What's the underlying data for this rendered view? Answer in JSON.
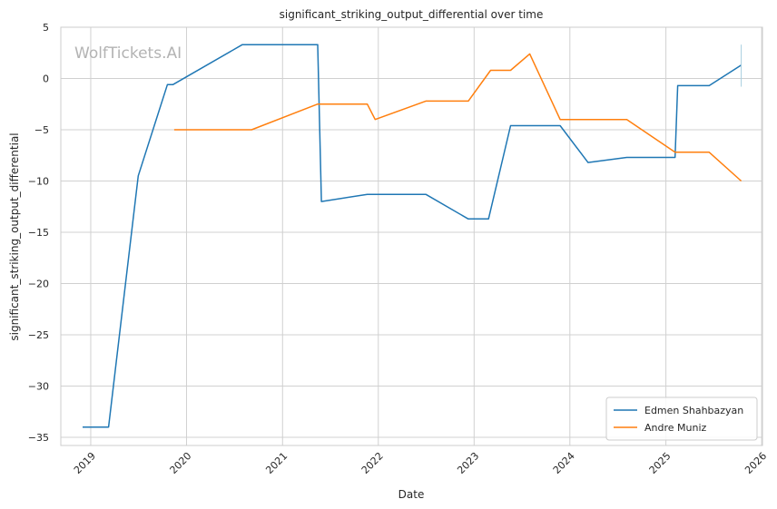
{
  "watermark": "WolfTickets.AI",
  "chart_data": {
    "type": "line",
    "title": "significant_striking_output_differential over time",
    "xlabel": "Date",
    "ylabel": "significant_striking_output_differential",
    "xlim": [
      "2018-09-09",
      "2026-01-04"
    ],
    "ylim": [
      -35.8,
      5.0
    ],
    "xticks": [
      "2019",
      "2020",
      "2021",
      "2022",
      "2023",
      "2024",
      "2025",
      "2026"
    ],
    "yticks": [
      5,
      0,
      -5,
      -10,
      -15,
      -20,
      -25,
      -30,
      -35
    ],
    "ytick_labels": [
      "5",
      "0",
      "−5",
      "−10",
      "−15",
      "−20",
      "−25",
      "−30",
      "−35"
    ],
    "grid": true,
    "legend_position": "lower-right",
    "series": [
      {
        "name": "Edmen Shahbazyan",
        "color": "#1f77b4",
        "points": [
          [
            "2018-12-01",
            -34.0
          ],
          [
            "2019-03-10",
            -34.0
          ],
          [
            "2019-07-01",
            -9.5
          ],
          [
            "2019-10-20",
            -0.6
          ],
          [
            "2019-11-10",
            -0.6
          ],
          [
            "2020-08-01",
            3.3
          ],
          [
            "2021-05-15",
            3.3
          ],
          [
            "2021-05-29",
            -12.0
          ],
          [
            "2021-11-20",
            -11.3
          ],
          [
            "2022-07-01",
            -11.3
          ],
          [
            "2022-12-10",
            -13.7
          ],
          [
            "2023-02-25",
            -13.7
          ],
          [
            "2023-05-20",
            -4.6
          ],
          [
            "2023-11-25",
            -4.6
          ],
          [
            "2024-03-10",
            -8.2
          ],
          [
            "2024-08-05",
            -7.7
          ],
          [
            "2025-02-05",
            -7.7
          ],
          [
            "2025-02-15",
            -0.7
          ],
          [
            "2025-06-15",
            -0.7
          ],
          [
            "2025-10-15",
            1.3
          ]
        ]
      },
      {
        "name": "Andre Muniz",
        "color": "#ff7f0e",
        "points": [
          [
            "2019-11-15",
            -5.0
          ],
          [
            "2020-09-05",
            -5.0
          ],
          [
            "2021-05-15",
            -2.5
          ],
          [
            "2021-11-20",
            -2.5
          ],
          [
            "2021-12-20",
            -4.0
          ],
          [
            "2022-07-01",
            -2.2
          ],
          [
            "2022-12-10",
            -2.2
          ],
          [
            "2023-03-05",
            0.8
          ],
          [
            "2023-05-20",
            0.8
          ],
          [
            "2023-08-01",
            2.4
          ],
          [
            "2023-11-25",
            -4.0
          ],
          [
            "2024-08-05",
            -4.0
          ],
          [
            "2025-02-05",
            -7.2
          ],
          [
            "2025-06-15",
            -7.2
          ],
          [
            "2025-10-15",
            -10.0
          ]
        ]
      }
    ]
  }
}
